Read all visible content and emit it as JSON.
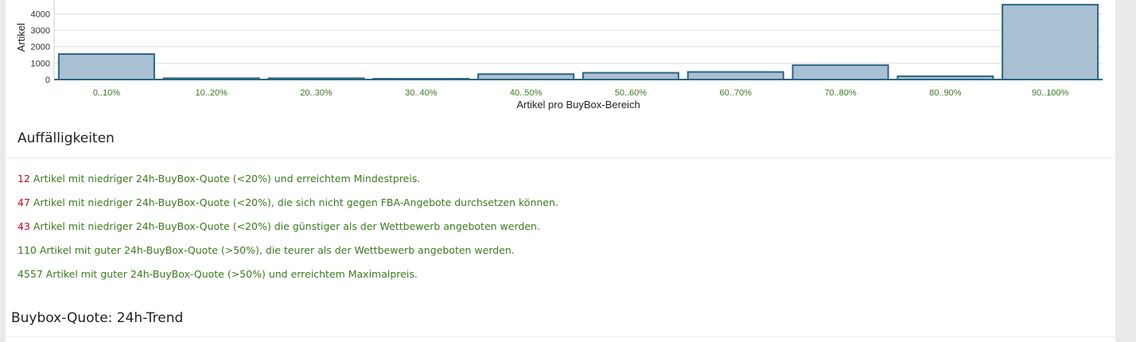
{
  "chart_data": {
    "type": "bar",
    "ylabel": "Artikel",
    "xlabel": "Artikel pro BuyBox-Bereich",
    "yticks": [
      0,
      1000,
      2000,
      3000,
      4000
    ],
    "ylim": [
      0,
      4700
    ],
    "grid": true,
    "categories": [
      "0..10%",
      "10..20%",
      "20..30%",
      "30..40%",
      "40..50%",
      "50..60%",
      "60..70%",
      "70..80%",
      "80..90%",
      "90..100%"
    ],
    "values": [
      1550,
      80,
      80,
      50,
      330,
      410,
      460,
      880,
      200,
      4560
    ],
    "colors": {
      "bar_fill": "#a9c0d3",
      "bar_stroke": "#2e6585",
      "tick_label": "#3c7a1e"
    }
  },
  "sections": {
    "auffaelligkeiten_title": "Auffälligkeiten",
    "trend_title": "Buybox-Quote: 24h-Trend"
  },
  "issues": [
    {
      "count": "12",
      "color": "red",
      "text": " Artikel mit niedriger 24h-BuyBox-Quote (<20%) und erreichtem Mindestpreis."
    },
    {
      "count": "47",
      "color": "red",
      "text": " Artikel mit niedriger 24h-BuyBox-Quote (<20%), die sich nicht gegen FBA-Angebote durchsetzen können."
    },
    {
      "count": "43",
      "color": "red",
      "text": " Artikel mit niedriger 24h-BuyBox-Quote (<20%) die günstiger als der Wettbewerb angeboten werden."
    },
    {
      "count": "110",
      "color": "green",
      "text": " Artikel mit guter 24h-BuyBox-Quote (>50%), die teurer als der Wettbewerb angeboten werden."
    },
    {
      "count": "4557",
      "color": "green",
      "text": " Artikel mit guter 24h-BuyBox-Quote (>50%) und erreichtem Maximalpreis."
    }
  ]
}
